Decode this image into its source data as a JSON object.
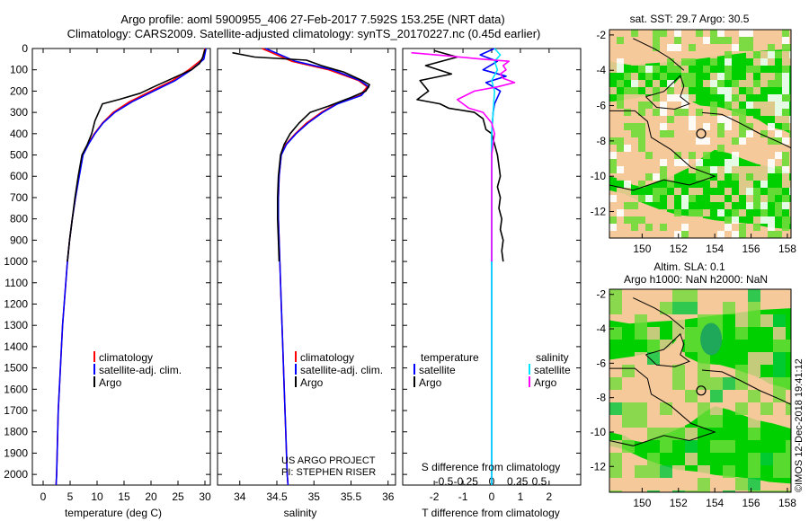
{
  "header": {
    "line1": "Argo profile: aoml 5900955_406 27-Feb-2017 7.592S 153.25E (NRT data)",
    "line2": "Climatology: CARS2009. Satellite-adjusted climatology: synTS_20170227.nc (0.45d earlier)"
  },
  "credits": {
    "project": "US ARGO PROJECT",
    "pi": "PI: STEPHEN RISER",
    "imos": "©IMOS 12-Dec-2018 19:41:12"
  },
  "colors": {
    "climatology": "#ff0000",
    "satellite": "#0000ff",
    "argo": "#000000",
    "sat_salinity": "#00e5ff",
    "argo_salinity": "#ff00ff",
    "land": "#f5c99a",
    "ocean": "#00d000",
    "ocean_light": "#6fdc3a",
    "ocean_dark": "#1fa85a",
    "ocean_alt": "#00c83c"
  },
  "chart_data": [
    {
      "id": "temperature",
      "type": "line",
      "xlabel": "temperature (deg C)",
      "xlim": [
        -2,
        31
      ],
      "xticks": [
        0,
        5,
        10,
        15,
        20,
        25,
        30
      ],
      "ylim": [
        2050,
        0
      ],
      "yticks": [
        0,
        100,
        200,
        300,
        400,
        500,
        600,
        700,
        800,
        900,
        1000,
        1100,
        1200,
        1300,
        1400,
        1500,
        1600,
        1700,
        1800,
        1900,
        2000
      ],
      "legend": [
        "climatology",
        "satellite-adj. clim.",
        "Argo"
      ],
      "series": [
        {
          "name": "climatology",
          "color": "#ff0000",
          "points": [
            [
              30,
              0
            ],
            [
              29.5,
              50
            ],
            [
              27,
              100
            ],
            [
              24,
              150
            ],
            [
              20,
              200
            ],
            [
              16,
              250
            ],
            [
              13,
              300
            ],
            [
              11,
              350
            ],
            [
              9.5,
              400
            ],
            [
              8.3,
              450
            ],
            [
              7.3,
              500
            ],
            [
              6.6,
              600
            ],
            [
              6,
              700
            ],
            [
              5.4,
              800
            ],
            [
              4.9,
              900
            ],
            [
              4.5,
              1000
            ],
            [
              4.2,
              1100
            ],
            [
              3.9,
              1200
            ],
            [
              3.6,
              1300
            ],
            [
              3.4,
              1400
            ],
            [
              3.2,
              1500
            ],
            [
              3,
              1600
            ],
            [
              2.8,
              1700
            ],
            [
              2.7,
              1800
            ],
            [
              2.6,
              1900
            ],
            [
              2.5,
              2000
            ],
            [
              2.4,
              2050
            ]
          ]
        },
        {
          "name": "satellite-adj. clim.",
          "color": "#0000ff",
          "points": [
            [
              30.2,
              0
            ],
            [
              29.8,
              50
            ],
            [
              27.5,
              100
            ],
            [
              24.5,
              150
            ],
            [
              20.5,
              200
            ],
            [
              16.5,
              250
            ],
            [
              13.3,
              300
            ],
            [
              11.1,
              350
            ],
            [
              9.6,
              400
            ],
            [
              8.4,
              450
            ],
            [
              7.4,
              500
            ],
            [
              6.7,
              600
            ],
            [
              6,
              700
            ],
            [
              5.4,
              800
            ],
            [
              4.9,
              900
            ],
            [
              4.5,
              1000
            ],
            [
              4.2,
              1100
            ],
            [
              3.9,
              1200
            ],
            [
              3.6,
              1300
            ],
            [
              3.4,
              1400
            ],
            [
              3.2,
              1500
            ],
            [
              3,
              1600
            ],
            [
              2.8,
              1700
            ],
            [
              2.7,
              1800
            ],
            [
              2.6,
              1900
            ],
            [
              2.5,
              2000
            ],
            [
              2.4,
              2050
            ]
          ]
        },
        {
          "name": "Argo",
          "color": "#000000",
          "points": [
            [
              30,
              5
            ],
            [
              29.6,
              40
            ],
            [
              29,
              70
            ],
            [
              27.5,
              100
            ],
            [
              24,
              140
            ],
            [
              20.5,
              180
            ],
            [
              18,
              210
            ],
            [
              14,
              240
            ],
            [
              11,
              260
            ],
            [
              10.3,
              300
            ],
            [
              9.6,
              340
            ],
            [
              9,
              400
            ],
            [
              8.2,
              450
            ],
            [
              7.2,
              500
            ],
            [
              6.5,
              600
            ],
            [
              5.9,
              700
            ],
            [
              5.4,
              800
            ],
            [
              4.9,
              900
            ],
            [
              4.5,
              1000
            ]
          ]
        }
      ]
    },
    {
      "id": "salinity",
      "type": "line",
      "xlabel": "salinity",
      "xlim": [
        33.7,
        36.1
      ],
      "xticks": [
        34,
        34.5,
        35,
        35.5,
        36
      ],
      "ylim": [
        2050,
        0
      ],
      "legend": [
        "climatology",
        "satellite-adj. clim.",
        "Argo"
      ],
      "series": [
        {
          "name": "climatology",
          "color": "#ff0000",
          "points": [
            [
              34.3,
              0
            ],
            [
              34.7,
              60
            ],
            [
              35.2,
              100
            ],
            [
              35.6,
              150
            ],
            [
              35.72,
              180
            ],
            [
              35.62,
              220
            ],
            [
              35.3,
              260
            ],
            [
              35.1,
              300
            ],
            [
              34.9,
              350
            ],
            [
              34.75,
              400
            ],
            [
              34.62,
              450
            ],
            [
              34.56,
              500
            ],
            [
              34.53,
              600
            ],
            [
              34.52,
              700
            ],
            [
              34.52,
              800
            ],
            [
              34.53,
              900
            ],
            [
              34.54,
              1000
            ],
            [
              34.56,
              1200
            ],
            [
              34.58,
              1400
            ],
            [
              34.6,
              1600
            ],
            [
              34.62,
              1800
            ],
            [
              34.64,
              2000
            ],
            [
              34.65,
              2050
            ]
          ]
        },
        {
          "name": "satellite-adj. clim.",
          "color": "#0000ff",
          "points": [
            [
              34.35,
              0
            ],
            [
              34.75,
              60
            ],
            [
              35.25,
              100
            ],
            [
              35.62,
              150
            ],
            [
              35.74,
              180
            ],
            [
              35.64,
              220
            ],
            [
              35.32,
              260
            ],
            [
              35.12,
              300
            ],
            [
              34.92,
              350
            ],
            [
              34.76,
              400
            ],
            [
              34.63,
              450
            ],
            [
              34.56,
              500
            ],
            [
              34.53,
              600
            ],
            [
              34.52,
              700
            ],
            [
              34.52,
              800
            ],
            [
              34.53,
              900
            ],
            [
              34.54,
              1000
            ],
            [
              34.56,
              1200
            ],
            [
              34.58,
              1400
            ],
            [
              34.6,
              1600
            ],
            [
              34.62,
              1800
            ],
            [
              34.64,
              2000
            ],
            [
              34.65,
              2050
            ]
          ]
        },
        {
          "name": "Argo",
          "color": "#000000",
          "points": [
            [
              33.9,
              20
            ],
            [
              34.2,
              40
            ],
            [
              34.9,
              55
            ],
            [
              35.1,
              80
            ],
            [
              35.4,
              110
            ],
            [
              35.65,
              150
            ],
            [
              35.75,
              170
            ],
            [
              35.7,
              200
            ],
            [
              35.5,
              230
            ],
            [
              35.2,
              270
            ],
            [
              34.95,
              300
            ],
            [
              34.8,
              350
            ],
            [
              34.68,
              400
            ],
            [
              34.6,
              450
            ],
            [
              34.55,
              500
            ],
            [
              34.52,
              600
            ],
            [
              34.51,
              700
            ],
            [
              34.51,
              800
            ],
            [
              34.52,
              900
            ],
            [
              34.53,
              1000
            ]
          ]
        }
      ]
    },
    {
      "id": "difference",
      "type": "line",
      "xlabel": "T difference from climatology",
      "xlabel_top": "S difference from climatology",
      "xlim": [
        -3.1,
        3.1
      ],
      "xticks_bottom": [
        [
          -2,
          "-2"
        ],
        [
          -1,
          "-1"
        ],
        [
          0,
          "0"
        ],
        [
          1,
          "1"
        ],
        [
          2,
          "2"
        ]
      ],
      "xticks_top": [
        [
          -1.66,
          "-0.5"
        ],
        [
          -0.9,
          "-0.25"
        ],
        [
          0,
          "0"
        ],
        [
          0.9,
          "0.25"
        ],
        [
          1.66,
          "0.5"
        ]
      ],
      "ylim": [
        2050,
        0
      ],
      "legend": {
        "temperature_title": "temperature",
        "salinity_title": "salinity",
        "temperature_items": [
          "satellite",
          "Argo"
        ],
        "salinity_items": [
          "satellite",
          "Argo"
        ]
      },
      "series": [
        {
          "name": "T satellite",
          "color": "#0000ff",
          "points": [
            [
              0.1,
              0
            ],
            [
              -0.4,
              30
            ],
            [
              0.2,
              60
            ],
            [
              -0.3,
              100
            ],
            [
              0.5,
              130
            ],
            [
              -0.2,
              160
            ],
            [
              0.3,
              200
            ],
            [
              0.1,
              260
            ],
            [
              0.05,
              300
            ],
            [
              0,
              400
            ],
            [
              0,
              500
            ],
            [
              0,
              700
            ],
            [
              0,
              1000
            ],
            [
              0,
              1500
            ],
            [
              0,
              2050
            ]
          ]
        },
        {
          "name": "T Argo",
          "color": "#000000",
          "points": [
            [
              -2,
              10
            ],
            [
              -1.2,
              40
            ],
            [
              -2.3,
              80
            ],
            [
              -1.4,
              120
            ],
            [
              -2.5,
              150
            ],
            [
              -2.2,
              200
            ],
            [
              -2.6,
              240
            ],
            [
              -1.8,
              260
            ],
            [
              -1.5,
              280
            ],
            [
              -0.6,
              300
            ],
            [
              -0.3,
              330
            ],
            [
              -0.2,
              380
            ],
            [
              0,
              400
            ],
            [
              0.1,
              450
            ],
            [
              0.2,
              500
            ],
            [
              0.25,
              550
            ],
            [
              0.3,
              600
            ],
            [
              0.2,
              650
            ],
            [
              0.3,
              700
            ],
            [
              0.25,
              750
            ],
            [
              0.35,
              800
            ],
            [
              0.3,
              850
            ],
            [
              0.4,
              900
            ],
            [
              0.35,
              950
            ],
            [
              0.4,
              1000
            ]
          ]
        },
        {
          "name": "S satellite",
          "color": "#00e5ff",
          "points": [
            [
              0.1,
              0
            ],
            [
              0.3,
              30
            ],
            [
              0.1,
              60
            ],
            [
              0.2,
              100
            ],
            [
              0,
              150
            ],
            [
              0.1,
              200
            ],
            [
              0.05,
              300
            ],
            [
              0,
              400
            ],
            [
              0,
              500
            ],
            [
              0,
              700
            ],
            [
              0,
              1000
            ],
            [
              0,
              1500
            ],
            [
              0,
              2050
            ]
          ]
        },
        {
          "name": "S Argo",
          "color": "#ff00ff",
          "points": [
            [
              -2.8,
              20
            ],
            [
              -1.5,
              35
            ],
            [
              -0.3,
              50
            ],
            [
              0.6,
              60
            ],
            [
              0.4,
              80
            ],
            [
              0.5,
              100
            ],
            [
              0.3,
              120
            ],
            [
              0.4,
              140
            ],
            [
              0.8,
              160
            ],
            [
              0.2,
              180
            ],
            [
              -0.6,
              200
            ],
            [
              -1.2,
              240
            ],
            [
              -0.8,
              280
            ],
            [
              -0.3,
              300
            ],
            [
              0,
              350
            ],
            [
              0.1,
              400
            ],
            [
              0,
              500
            ],
            [
              0,
              700
            ],
            [
              0,
              1000
            ]
          ]
        }
      ]
    },
    {
      "id": "map_sst",
      "type": "heatmap",
      "title": "sat. SST: 29.7 Argo: 30.5",
      "xticks": [
        150,
        152,
        154,
        156,
        158
      ],
      "yticks": [
        -2,
        -4,
        -6,
        -8,
        -10,
        -12
      ],
      "xlim": [
        148.2,
        158.2
      ],
      "ylim": [
        -13.5,
        -1.7
      ],
      "argo_location": [
        153.25,
        -7.59
      ]
    },
    {
      "id": "map_sla",
      "type": "heatmap",
      "title_line1": "Altim. SLA: 0.1",
      "title_line2": "Argo h1000: NaN h2000: NaN",
      "xticks": [
        150,
        152,
        154,
        156,
        158
      ],
      "yticks": [
        -2,
        -4,
        -6,
        -8,
        -10,
        -12
      ],
      "xlim": [
        148.2,
        158.2
      ],
      "ylim": [
        -13.5,
        -1.7
      ],
      "argo_location": [
        153.25,
        -7.59
      ]
    }
  ]
}
